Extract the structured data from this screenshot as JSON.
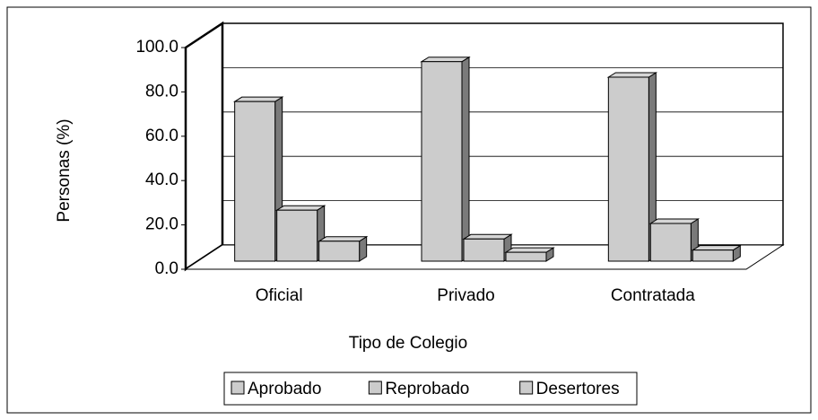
{
  "chart_data": {
    "type": "bar3d",
    "x_label": "Tipo de Colegio",
    "y_label": "Personas (%)",
    "categories": [
      "Oficial",
      "Privado",
      "Contratada"
    ],
    "series": [
      {
        "name": "Aprobado",
        "color": "#cccccc",
        "values": [
          72,
          90,
          83
        ]
      },
      {
        "name": "Reprobado",
        "color": "#cccccc",
        "values": [
          23,
          10,
          17
        ]
      },
      {
        "name": "Desertores",
        "color": "#cccccc",
        "values": [
          9,
          4,
          5
        ]
      }
    ],
    "ylim": [
      0,
      100
    ],
    "yticks": [
      {
        "value": 0,
        "label": "0.0"
      },
      {
        "value": 20,
        "label": "20.0"
      },
      {
        "value": 40,
        "label": "40.0"
      },
      {
        "value": 60,
        "label": "60.0"
      },
      {
        "value": 80,
        "label": "80.0"
      },
      {
        "value": 100,
        "label": "100.0"
      }
    ],
    "grid": true,
    "legend": "bottom"
  }
}
